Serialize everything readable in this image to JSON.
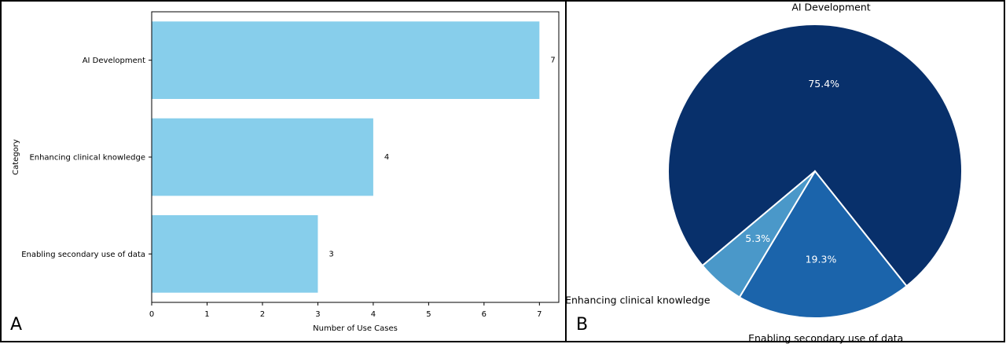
{
  "chart_data": [
    {
      "type": "bar",
      "orientation": "horizontal",
      "panel_label": "A",
      "categories": [
        "AI Development",
        "Enhancing clinical knowledge",
        "Enabling secondary use of data"
      ],
      "values": [
        7,
        4,
        3
      ],
      "value_labels": [
        "7",
        "4",
        "3"
      ],
      "xlabel": "Number of Use Cases",
      "ylabel": "Category",
      "xlim": [
        0,
        7.35
      ],
      "xticks": [
        0,
        1,
        2,
        3,
        4,
        5,
        6,
        7
      ],
      "xtick_labels": [
        "0",
        "1",
        "2",
        "3",
        "4",
        "5",
        "6",
        "7"
      ],
      "bar_color": "#87ceeb",
      "grid": false
    },
    {
      "type": "pie",
      "panel_label": "B",
      "labels": [
        "AI Development",
        "Enabling secondary use of data",
        "Enhancing clinical knowledge"
      ],
      "values": [
        75.4,
        19.3,
        5.3
      ],
      "value_labels": [
        "75.4%",
        "19.3%",
        "5.3%"
      ],
      "colors": [
        "#08306b",
        "#1b64ab",
        "#4a98c9"
      ],
      "edge_color": "#ffffff"
    }
  ]
}
